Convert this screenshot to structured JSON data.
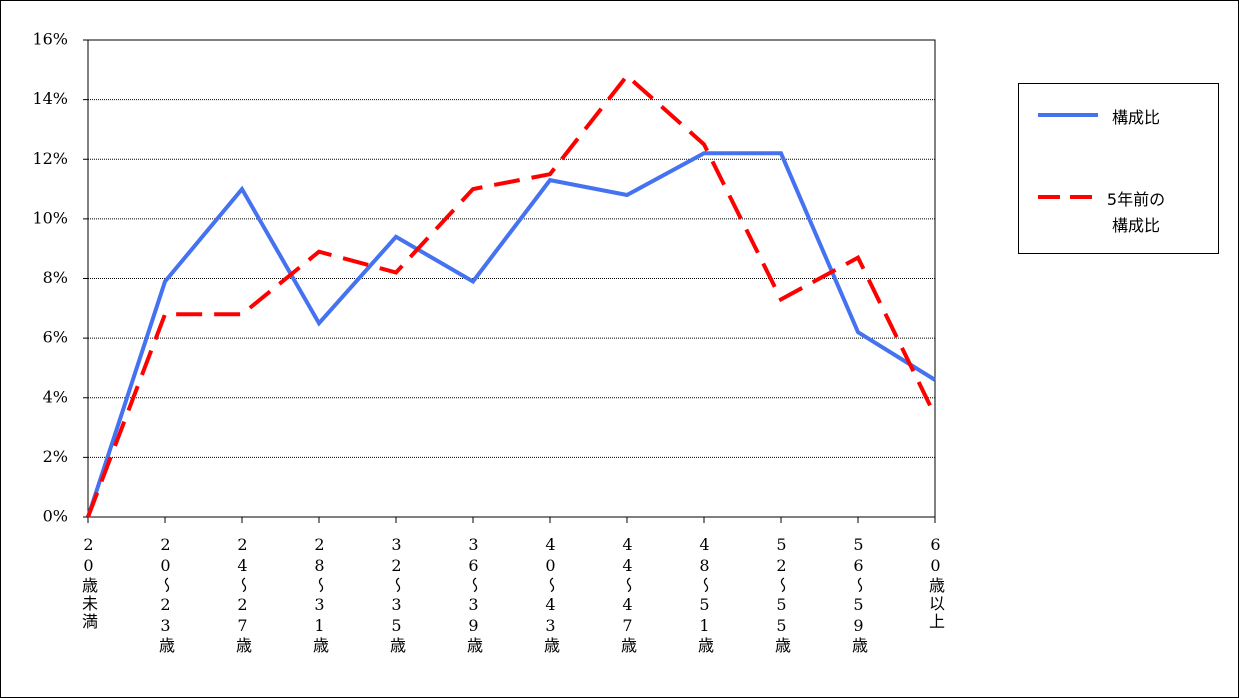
{
  "chart_data": {
    "type": "line",
    "categories": [
      "20歳未満",
      "20～23歳",
      "24～27歳",
      "28～31歳",
      "32～35歳",
      "36～39歳",
      "40～43歳",
      "44～47歳",
      "48～51歳",
      "52～55歳",
      "56～59歳",
      "60歳以上"
    ],
    "series": [
      {
        "name": "構成比",
        "color": "#4472f0",
        "dash": false,
        "values": [
          0,
          7.9,
          11.0,
          6.5,
          9.4,
          7.9,
          11.3,
          10.8,
          12.2,
          12.2,
          6.2,
          4.6
        ]
      },
      {
        "name": "5年前の構成比",
        "color": "#ff0000",
        "dash": true,
        "values": [
          0,
          6.8,
          6.8,
          8.9,
          8.2,
          11.0,
          11.5,
          14.8,
          12.5,
          7.3,
          8.7,
          3.4
        ]
      }
    ],
    "ylim": [
      0,
      16
    ],
    "yticks": [
      {
        "value": 0,
        "label": "0%"
      },
      {
        "value": 2,
        "label": "2%"
      },
      {
        "value": 4,
        "label": "4%"
      },
      {
        "value": 6,
        "label": "6%"
      },
      {
        "value": 8,
        "label": "8%"
      },
      {
        "value": 10,
        "label": "10%"
      },
      {
        "value": 12,
        "label": "12%"
      },
      {
        "value": 14,
        "label": "14%"
      },
      {
        "value": 16,
        "label": "16%"
      }
    ],
    "grid": true,
    "legend": "right"
  }
}
